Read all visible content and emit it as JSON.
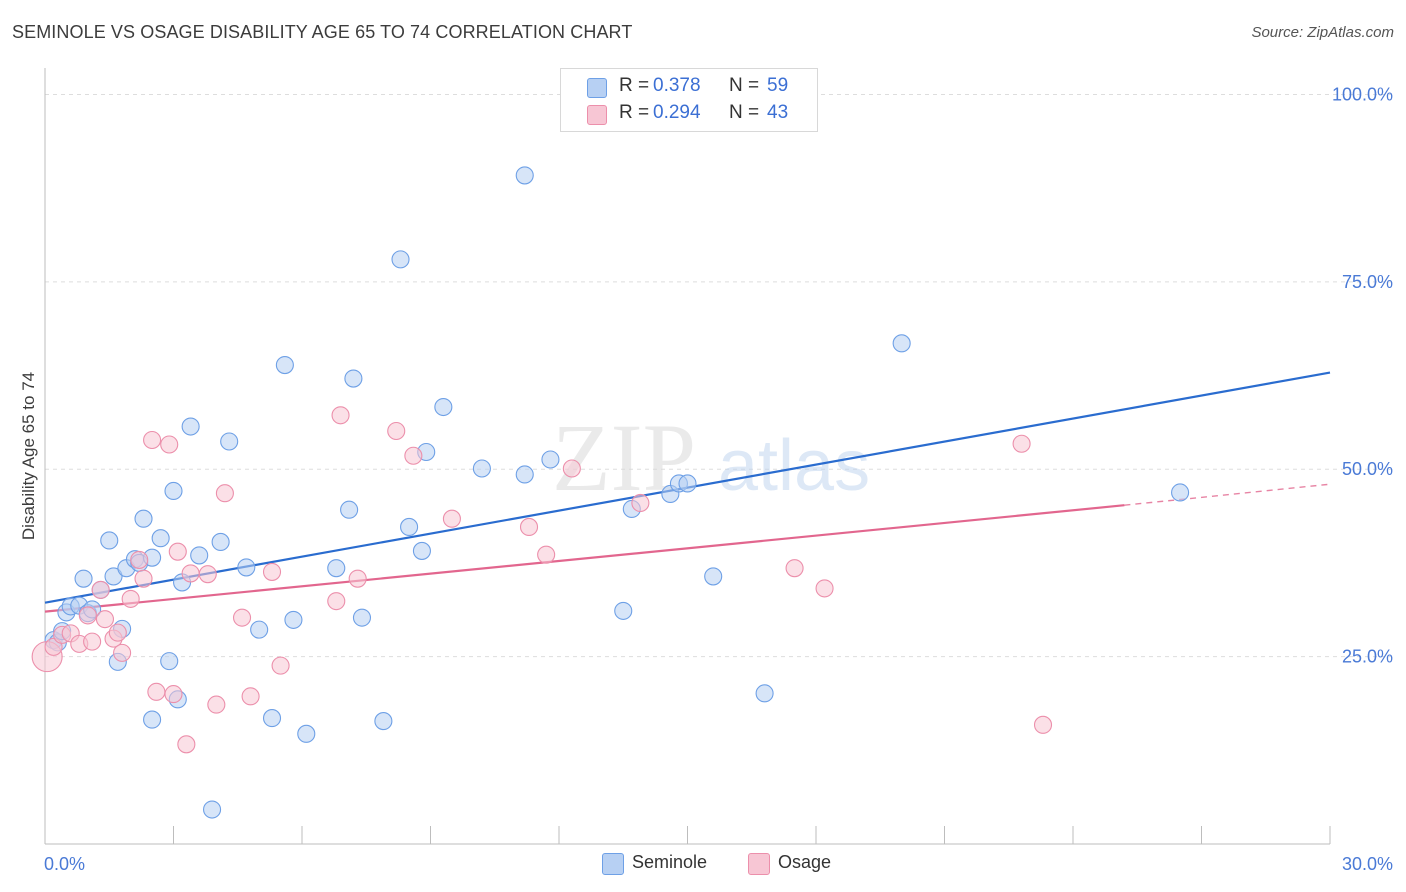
{
  "header": {
    "title": "SEMINOLE VS OSAGE DISABILITY AGE 65 TO 74 CORRELATION CHART",
    "source": "Source: ZipAtlas.com"
  },
  "colors": {
    "seminole": "#6ea0e6",
    "seminole_fill": "#b7d0f3",
    "seminole_line": "#2a6ccf",
    "osage": "#ec8fab",
    "osage_fill": "#f7c6d4",
    "osage_line": "#e2668e",
    "axis_text": "#4a7ad6",
    "grid": "#dddddd"
  },
  "legend_top": {
    "rows": [
      {
        "r_label": "R =",
        "r_value": "0.378",
        "n_label": "N =",
        "n_value": "59"
      },
      {
        "r_label": "R =",
        "r_value": "0.294",
        "n_label": "N =",
        "n_value": "43"
      }
    ]
  },
  "legend_bottom": {
    "items": [
      "Seminole",
      "Osage"
    ]
  },
  "watermark": {
    "zip": "ZIP",
    "atlas": "atlas"
  },
  "chart_data": {
    "type": "scatter",
    "title": "SEMINOLE VS OSAGE DISABILITY AGE 65 TO 74 CORRELATION CHART",
    "xlabel": "",
    "ylabel": "Disability Age 65 to 74",
    "xlim": [
      0,
      30
    ],
    "ylim": [
      0,
      105
    ],
    "x_tick_labels": [
      "0.0%",
      "30.0%"
    ],
    "y_ticks": [
      25,
      50,
      75,
      100
    ],
    "y_tick_labels": [
      "25.0%",
      "50.0%",
      "75.0%",
      "100.0%"
    ],
    "grid": true,
    "legend_position": "top-center",
    "series": [
      {
        "name": "Seminole",
        "R": 0.378,
        "N": 59,
        "trend": {
          "x": [
            0,
            30
          ],
          "y": [
            32.2,
            62.9
          ]
        },
        "points": [
          [
            0.2,
            27.2
          ],
          [
            0.3,
            26.9
          ],
          [
            0.4,
            28.4
          ],
          [
            0.5,
            30.9
          ],
          [
            0.6,
            31.7
          ],
          [
            0.8,
            31.8
          ],
          [
            0.9,
            35.4
          ],
          [
            1.0,
            30.8
          ],
          [
            1.1,
            31.3
          ],
          [
            1.3,
            33.9
          ],
          [
            1.5,
            40.5
          ],
          [
            1.6,
            35.7
          ],
          [
            1.8,
            28.7
          ],
          [
            1.7,
            24.3
          ],
          [
            1.9,
            36.8
          ],
          [
            2.1,
            38.0
          ],
          [
            2.2,
            37.5
          ],
          [
            2.3,
            43.4
          ],
          [
            2.5,
            38.2
          ],
          [
            2.5,
            16.6
          ],
          [
            2.7,
            40.8
          ],
          [
            2.9,
            24.4
          ],
          [
            3.0,
            47.1
          ],
          [
            3.1,
            19.3
          ],
          [
            3.2,
            34.9
          ],
          [
            3.4,
            55.7
          ],
          [
            3.6,
            38.5
          ],
          [
            3.9,
            4.6
          ],
          [
            4.1,
            40.3
          ],
          [
            4.3,
            53.7
          ],
          [
            4.7,
            36.9
          ],
          [
            5.0,
            28.6
          ],
          [
            5.3,
            16.8
          ],
          [
            5.6,
            63.9
          ],
          [
            5.8,
            29.9
          ],
          [
            6.1,
            14.7
          ],
          [
            6.8,
            36.8
          ],
          [
            7.1,
            44.6
          ],
          [
            7.2,
            62.1
          ],
          [
            7.4,
            30.2
          ],
          [
            7.9,
            16.4
          ],
          [
            8.3,
            78.0
          ],
          [
            8.5,
            42.3
          ],
          [
            8.8,
            39.1
          ],
          [
            8.9,
            52.3
          ],
          [
            9.3,
            58.3
          ],
          [
            10.2,
            50.1
          ],
          [
            11.2,
            49.3
          ],
          [
            11.2,
            89.2
          ],
          [
            11.8,
            51.3
          ],
          [
            13.5,
            31.1
          ],
          [
            13.7,
            44.7
          ],
          [
            14.6,
            46.7
          ],
          [
            14.8,
            48.1
          ],
          [
            15.0,
            48.1
          ],
          [
            15.6,
            35.7
          ],
          [
            16.8,
            20.1
          ],
          [
            20.0,
            66.8
          ],
          [
            26.5,
            46.9
          ]
        ]
      },
      {
        "name": "Osage",
        "R": 0.294,
        "N": 43,
        "trend": {
          "x": [
            0,
            25.2
          ],
          "y": [
            31.0,
            45.2
          ]
        },
        "trend_dashed": {
          "x": [
            25.2,
            30
          ],
          "y": [
            45.2,
            48.0
          ]
        },
        "points": [
          [
            0.05,
            25.0
          ],
          [
            0.2,
            26.3
          ],
          [
            0.4,
            27.9
          ],
          [
            0.6,
            28.1
          ],
          [
            0.8,
            26.7
          ],
          [
            1.0,
            30.5
          ],
          [
            1.1,
            27.0
          ],
          [
            1.3,
            33.9
          ],
          [
            1.4,
            30.0
          ],
          [
            1.6,
            27.4
          ],
          [
            1.7,
            28.2
          ],
          [
            1.8,
            25.5
          ],
          [
            2.0,
            32.7
          ],
          [
            2.2,
            37.9
          ],
          [
            2.3,
            35.4
          ],
          [
            2.5,
            53.9
          ],
          [
            2.6,
            20.3
          ],
          [
            2.9,
            53.3
          ],
          [
            3.0,
            20.0
          ],
          [
            3.1,
            39.0
          ],
          [
            3.3,
            13.3
          ],
          [
            3.4,
            36.1
          ],
          [
            3.8,
            36.0
          ],
          [
            4.0,
            18.6
          ],
          [
            4.2,
            46.8
          ],
          [
            4.6,
            30.2
          ],
          [
            4.8,
            19.7
          ],
          [
            5.3,
            36.3
          ],
          [
            5.5,
            23.8
          ],
          [
            6.8,
            32.4
          ],
          [
            6.9,
            57.2
          ],
          [
            7.3,
            35.4
          ],
          [
            8.2,
            55.1
          ],
          [
            8.6,
            51.8
          ],
          [
            9.5,
            43.4
          ],
          [
            11.3,
            42.3
          ],
          [
            11.7,
            38.6
          ],
          [
            12.3,
            50.1
          ],
          [
            13.9,
            45.5
          ],
          [
            17.5,
            36.8
          ],
          [
            18.2,
            34.1
          ],
          [
            22.8,
            53.4
          ],
          [
            23.3,
            15.9
          ]
        ]
      }
    ]
  }
}
